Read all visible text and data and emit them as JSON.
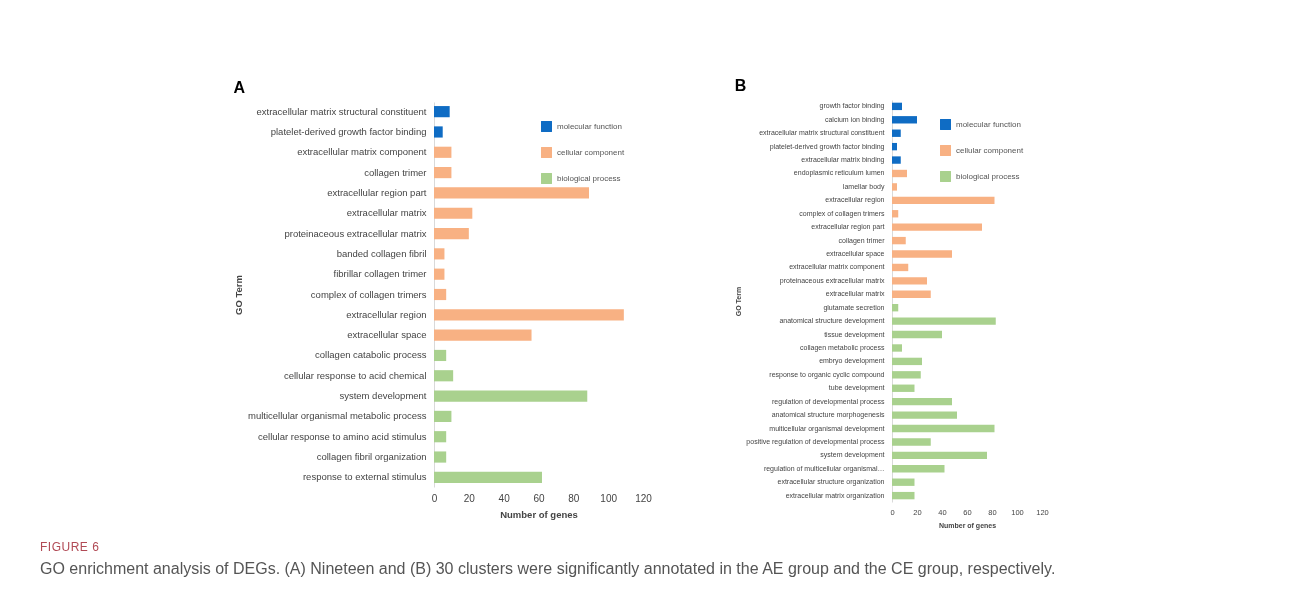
{
  "chart_data": [
    {
      "type": "bar",
      "orientation": "horizontal",
      "title": "A",
      "xlabel": "Number of genes",
      "ylabel": "GO Term",
      "categories": [
        "extracellular matrix structural constituent",
        "platelet-derived growth factor binding",
        "extracellular matrix component",
        "collagen trimer",
        "extracellular region part",
        "extracellular matrix",
        "proteinaceous extracellular matrix",
        "banded collagen fibril",
        "fibrillar collagen trimer",
        "complex of collagen trimers",
        "extracellular region",
        "extracellular space",
        "collagen catabolic process",
        "cellular response to acid chemical",
        "system development",
        "multicellular organismal metabolic process",
        "cellular response to amino acid stimulus",
        "collagen fibril organization",
        "response to external stimulus"
      ],
      "series": [
        {
          "name": "molecular function",
          "color": "#0f6cc4",
          "values": [
            9,
            5,
            null,
            null,
            null,
            null,
            null,
            null,
            null,
            null,
            null,
            null,
            null,
            null,
            null,
            null,
            null,
            null,
            null
          ]
        },
        {
          "name": "cellular component",
          "color": "#f8b183",
          "values": [
            null,
            null,
            10,
            10,
            89,
            22,
            20,
            6,
            6,
            7,
            109,
            56,
            null,
            null,
            null,
            null,
            null,
            null,
            null
          ]
        },
        {
          "name": "biological process",
          "color": "#a9d18e",
          "values": [
            null,
            null,
            null,
            null,
            null,
            null,
            null,
            null,
            null,
            null,
            null,
            null,
            7,
            11,
            88,
            10,
            7,
            7,
            62
          ]
        }
      ],
      "xlim": [
        0,
        120
      ],
      "xticks": [
        0,
        20,
        40,
        60,
        80,
        100,
        120
      ],
      "legend": "top right",
      "grid": false
    },
    {
      "type": "bar",
      "orientation": "horizontal",
      "title": "B",
      "xlabel": "Number of genes",
      "ylabel": "GO Term",
      "categories": [
        "growth factor binding",
        "calcium ion binding",
        "extracellular matrix structural constituent",
        "platelet-derived growth factor binding",
        "extracellular matrix binding",
        "endoplasmic reticulum lumen",
        "lamellar body",
        "extracellular region",
        "complex of collagen trimers",
        "extracellular region part",
        "collagen trimer",
        "extracellular space",
        "extracellular matrix component",
        "proteinaceous extracellular matrix",
        "extracellular matrix",
        "glutamate secretion",
        "anatomical structure development",
        "tissue development",
        "collagen metabolic process",
        "embryo development",
        "response to organic cyclic compound",
        "tube development",
        "regulation of developmental process",
        "anatomical structure morphogenesis",
        "multicellular organismal development",
        "positive regulation of developmental process",
        "system development",
        "regulation of multicellular organismal…",
        "extracellular structure organization",
        "extracellular matrix organization"
      ],
      "series": [
        {
          "name": "molecular function",
          "color": "#0f6cc4",
          "values": [
            8,
            20,
            7,
            4,
            7,
            null,
            null,
            null,
            null,
            null,
            null,
            null,
            null,
            null,
            null,
            null,
            null,
            null,
            null,
            null,
            null,
            null,
            null,
            null,
            null,
            null,
            null,
            null,
            null,
            null
          ]
        },
        {
          "name": "cellular component",
          "color": "#f8b183",
          "values": [
            null,
            null,
            null,
            null,
            null,
            12,
            4,
            82,
            5,
            72,
            11,
            48,
            13,
            28,
            31,
            null,
            null,
            null,
            null,
            null,
            null,
            null,
            null,
            null,
            null,
            null,
            null,
            null,
            null,
            null
          ]
        },
        {
          "name": "biological process",
          "color": "#a9d18e",
          "values": [
            null,
            null,
            null,
            null,
            null,
            null,
            null,
            null,
            null,
            null,
            null,
            null,
            null,
            null,
            null,
            5,
            83,
            40,
            8,
            24,
            23,
            18,
            48,
            52,
            82,
            31,
            76,
            42,
            18,
            18
          ]
        }
      ],
      "xlim": [
        0,
        120
      ],
      "xticks": [
        0,
        20,
        40,
        60,
        80,
        100,
        120
      ],
      "legend": "top right",
      "grid": false,
      "annotations": [
        "FIGURE 6",
        "GO enrichment analysis of DEGs. (A) Nineteen and (B) 30 clusters were significantly annotated in the AE group and the CE group, respectively."
      ]
    }
  ]
}
